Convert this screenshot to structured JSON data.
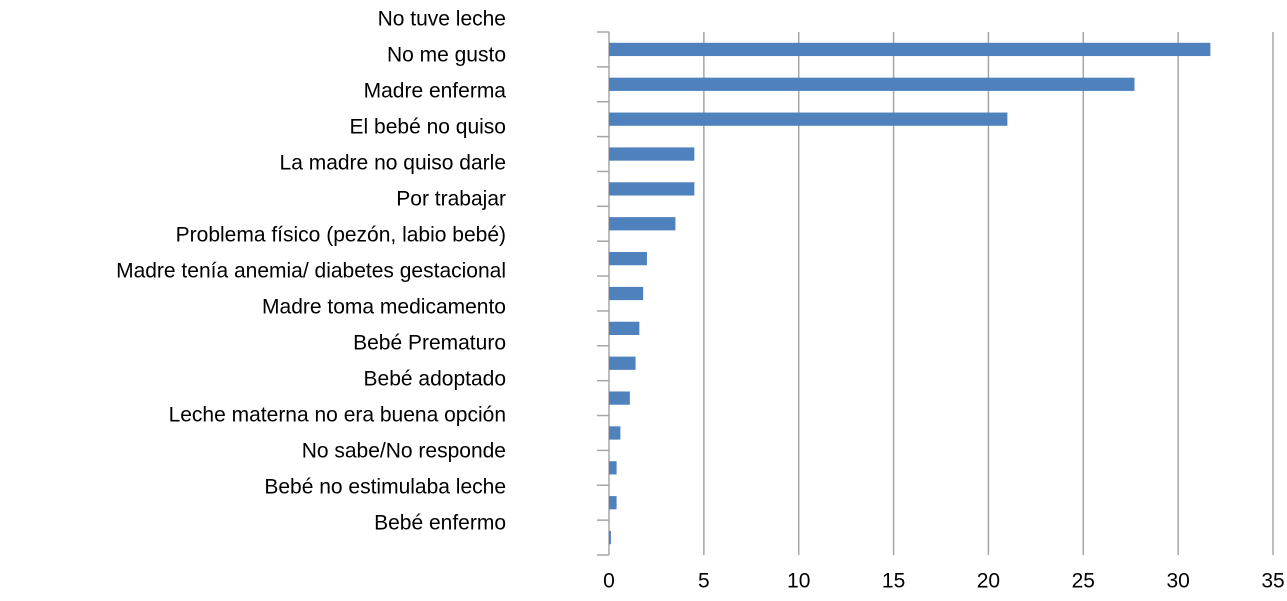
{
  "chart_data": {
    "type": "hbar",
    "categories": [
      "No tuve leche",
      "No me gusto",
      "Madre enferma",
      "El bebé no quiso",
      "La madre no quiso darle",
      "Por trabajar",
      "Problema físico (pezón, labio bebé)",
      "Madre tenía anemia/ diabetes gestacional",
      "Madre toma medicamento",
      "Bebé Prematuro",
      "Bebé adoptado",
      "Leche materna no era buena opción",
      "No sabe/No responde",
      "Bebé no estimulaba leche",
      "Bebé enfermo"
    ],
    "values": [
      31.7,
      27.7,
      21.0,
      4.5,
      4.5,
      3.5,
      2.0,
      1.8,
      1.6,
      1.4,
      1.1,
      0.6,
      0.4,
      0.4,
      0.1
    ],
    "color": "#4f81bd",
    "xlim": [
      0,
      35
    ],
    "xticks": [
      0,
      5,
      10,
      15,
      20,
      25,
      30,
      35
    ],
    "grid": true
  }
}
